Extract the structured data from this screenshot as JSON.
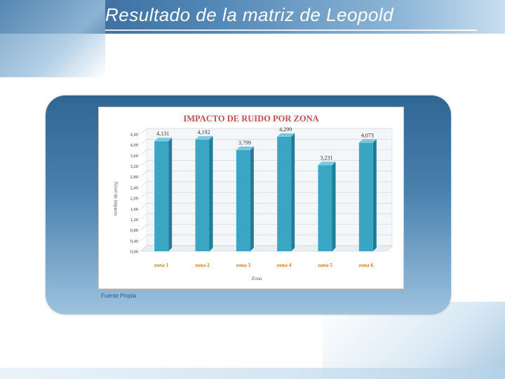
{
  "slide": {
    "title": "Resultado de la matriz de Leopold",
    "source": "Fuente Propia"
  },
  "chart_data": {
    "type": "bar",
    "title": "IMPACTO DE RUIDO POR ZONA",
    "xlabel": "Zona",
    "ylabel": "Nivel de impacto",
    "categories": [
      "zona 1",
      "zona 2",
      "zona 3",
      "zona 4",
      "zona 5",
      "zona 6"
    ],
    "values": [
      4.131,
      4.192,
      3.799,
      4.299,
      3.231,
      4.073
    ],
    "value_labels": [
      "4,131",
      "4,192",
      "3,799",
      "4,299",
      "3,231",
      "4,073"
    ],
    "y_ticks": [
      "0,00",
      "0,40",
      "0,80",
      "1,20",
      "1,60",
      "2,00",
      "2,40",
      "2,80",
      "3,20",
      "3,60",
      "4,00",
      "4,40"
    ],
    "ylim": [
      0,
      4.4
    ],
    "grid": true,
    "bar_color": "#3aa6c4"
  }
}
